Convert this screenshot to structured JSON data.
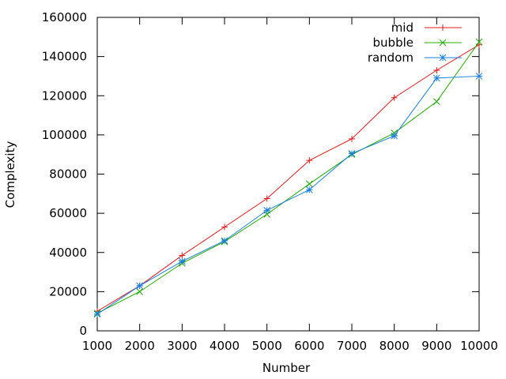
{
  "chart_data": {
    "type": "line",
    "xlabel": "Number",
    "ylabel": "Complexity",
    "xlim": [
      1000,
      10000
    ],
    "ylim": [
      0,
      160000
    ],
    "x_ticks": [
      "1000",
      "2000",
      "3000",
      "4000",
      "5000",
      "6000",
      "7000",
      "8000",
      "9000",
      "10000"
    ],
    "y_ticks": [
      "0",
      "20000",
      "40000",
      "60000",
      "80000",
      "100000",
      "120000",
      "140000",
      "160000"
    ],
    "grid": false,
    "legend_position": "top-right",
    "x": [
      1000,
      2000,
      3000,
      4000,
      5000,
      6000,
      7000,
      8000,
      9000,
      10000
    ],
    "series": [
      {
        "name": "mid",
        "marker": "plus",
        "color": "#e41a1c",
        "values": [
          10000,
          23000,
          38500,
          53000,
          67500,
          87000,
          98000,
          119000,
          133000,
          146000
        ]
      },
      {
        "name": "bubble",
        "marker": "cross",
        "color": "#1faa00",
        "values": [
          9000,
          20000,
          34500,
          45500,
          59500,
          75000,
          90000,
          101000,
          117000,
          147500
        ]
      },
      {
        "name": "random",
        "marker": "star",
        "color": "#1a7fe0",
        "values": [
          8500,
          23000,
          35500,
          46000,
          61500,
          72000,
          90500,
          99500,
          129000,
          130000
        ]
      }
    ]
  }
}
